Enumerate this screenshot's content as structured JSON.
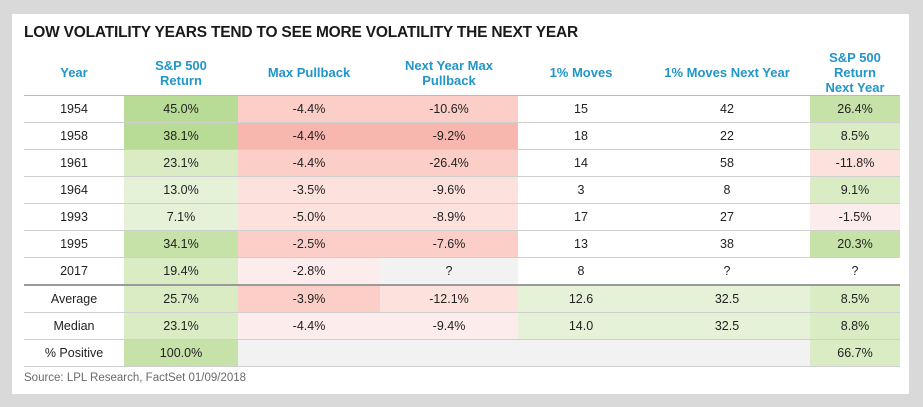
{
  "chart_data": {
    "type": "table",
    "title": "LOW VOLATILITY YEARS TEND TO SEE MORE VOLATILITY THE NEXT YEAR",
    "columns": [
      [
        "Year"
      ],
      [
        "S&P 500",
        "Return"
      ],
      [
        "Max Pullback"
      ],
      [
        "Next Year Max",
        "Pullback"
      ],
      [
        "1% Moves"
      ],
      [
        "1% Moves Next Year"
      ],
      [
        "S&P 500 Return",
        "Next Year"
      ]
    ],
    "rows": [
      [
        "1954",
        "45.0%",
        "-4.4%",
        "-10.6%",
        "15",
        "42",
        "26.4%"
      ],
      [
        "1958",
        "38.1%",
        "-4.4%",
        "-9.2%",
        "18",
        "22",
        "8.5%"
      ],
      [
        "1961",
        "23.1%",
        "-4.4%",
        "-26.4%",
        "14",
        "58",
        "-11.8%"
      ],
      [
        "1964",
        "13.0%",
        "-3.5%",
        "-9.6%",
        "3",
        "8",
        "9.1%"
      ],
      [
        "1993",
        "7.1%",
        "-5.0%",
        "-8.9%",
        "17",
        "27",
        "-1.5%"
      ],
      [
        "1995",
        "34.1%",
        "-2.5%",
        "-7.6%",
        "13",
        "38",
        "20.3%"
      ],
      [
        "2017",
        "19.4%",
        "-2.8%",
        "?",
        "8",
        "?",
        "?"
      ]
    ],
    "summary": [
      [
        "Average",
        "25.7%",
        "-3.9%",
        "-12.1%",
        "12.6",
        "32.5",
        "8.5%"
      ],
      [
        "Median",
        "23.1%",
        "-4.4%",
        "-9.4%",
        "14.0",
        "32.5",
        "8.8%"
      ],
      [
        "% Positive",
        "100.0%",
        "",
        "",
        "",
        "",
        "66.7%"
      ]
    ],
    "source": "Source: LPL Research, FactSet 01/09/2018"
  }
}
